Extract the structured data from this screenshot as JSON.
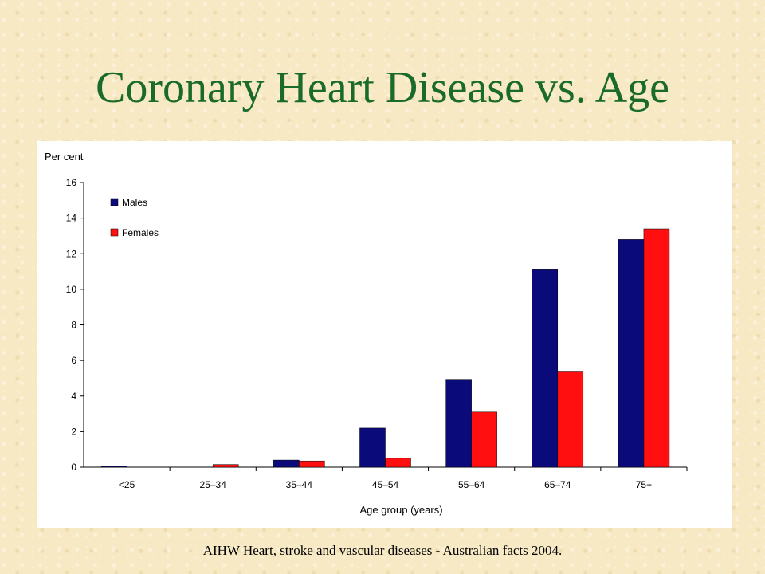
{
  "slide": {
    "title": "Coronary Heart Disease vs. Age",
    "source": "AIHW Heart, stroke and vascular diseases - Australian facts 2004."
  },
  "colors": {
    "title": "#1a6b2a",
    "males": "#0a0a7a",
    "females": "#ff0f0f"
  },
  "chart_data": {
    "type": "bar",
    "title": "",
    "ylabel": "Per cent",
    "xlabel": "Age group (years)",
    "categories": [
      "<25",
      "25–34",
      "35–44",
      "45–54",
      "55–64",
      "65–74",
      "75+"
    ],
    "ylim": [
      0,
      16
    ],
    "yticks": [
      0,
      2,
      4,
      6,
      8,
      10,
      12,
      14,
      16
    ],
    "legend": "top-left",
    "grid": false,
    "series": [
      {
        "name": "Males",
        "color": "#0a0a7a",
        "values": [
          0.05,
          0.0,
          0.4,
          2.2,
          4.9,
          11.1,
          12.8
        ]
      },
      {
        "name": "Females",
        "color": "#ff0f0f",
        "values": [
          0.0,
          0.15,
          0.35,
          0.5,
          3.1,
          5.4,
          13.4
        ]
      }
    ]
  }
}
